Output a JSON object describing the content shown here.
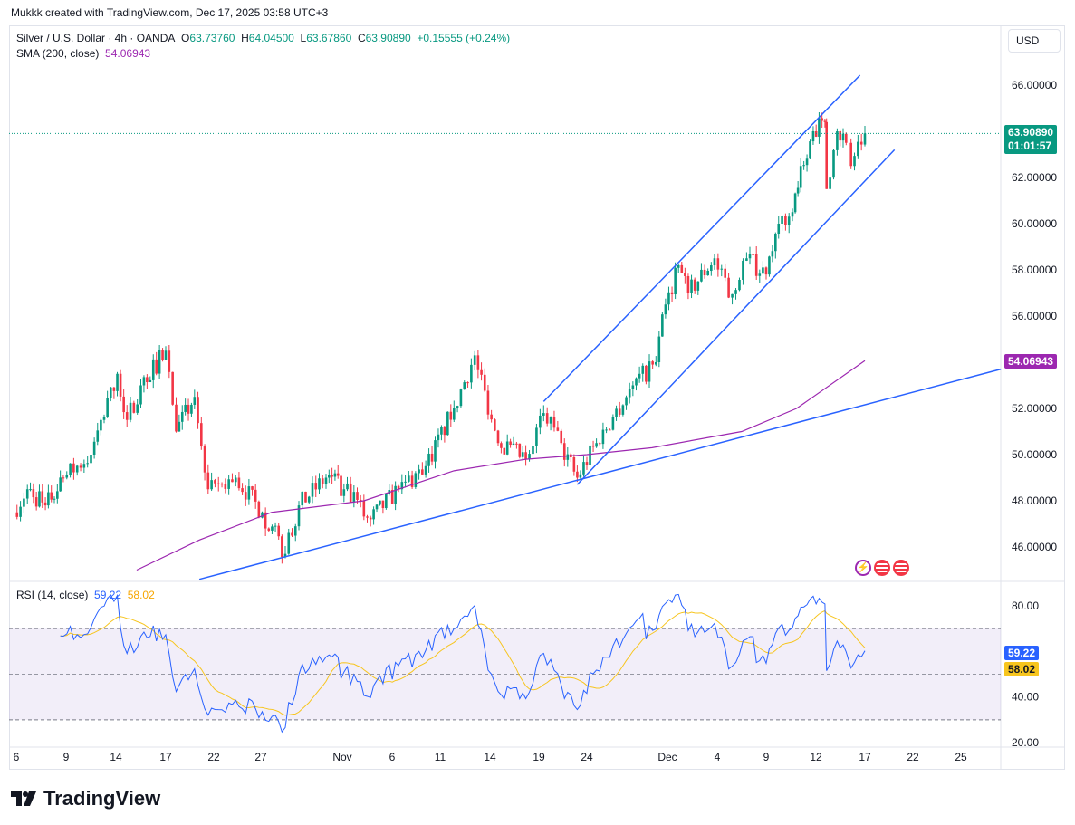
{
  "credit": "Mukkk created with TradingView.com, Dec 17, 2025 03:58 UTC+3",
  "legend": {
    "symbol": "Silver / U.S. Dollar · 4h · OANDA",
    "o_label": "O",
    "o": "63.73760",
    "h_label": "H",
    "h": "64.04500",
    "l_label": "L",
    "l": "63.67860",
    "c_label": "C",
    "c": "63.90890",
    "change": "+0.15555 (+0.24%)",
    "sma_label": "SMA (200, close)",
    "sma_value": "54.06943"
  },
  "currency": "USD",
  "price_label": {
    "price": "63.90890",
    "countdown": "01:01:57"
  },
  "sma_label": "54.06943",
  "rsi": {
    "label": "RSI (14, close)",
    "value": "59.22",
    "ma": "58.02"
  },
  "brand": "TradingView",
  "colors": {
    "up": "#089981",
    "down": "#f23645",
    "sma": "#9c27b0",
    "trendline": "#2962ff",
    "rsi": "#2962ff",
    "rsi_ma": "#f7c51e",
    "band": "#7e57c2"
  },
  "chart_data": [
    {
      "type": "candlestick",
      "title": "Silver / U.S. Dollar · 4h · OANDA",
      "ylim": [
        45,
        66.5
      ],
      "price_ticks": [
        "66.00000",
        "62.00000",
        "60.00000",
        "58.00000",
        "56.00000",
        "52.00000",
        "50.00000",
        "48.00000",
        "46.00000"
      ],
      "price_tick_values": [
        66,
        62,
        60,
        58,
        56,
        52,
        50,
        48,
        46
      ],
      "x_ticks": [
        "6",
        "9",
        "14",
        "17",
        "22",
        "27",
        "Nov",
        "6",
        "11",
        "14",
        "19",
        "24",
        "Dec",
        "4",
        "9",
        "12",
        "17",
        "22",
        "25"
      ],
      "x_tick_dates": [
        "Oct 6",
        "Oct 9",
        "Oct 14",
        "Oct 17",
        "Oct 22",
        "Oct 27",
        "Nov 1",
        "Nov 6",
        "Nov 11",
        "Nov 14",
        "Nov 19",
        "Nov 24",
        "Dec 1",
        "Dec 4",
        "Dec 9",
        "Dec 12",
        "Dec 17",
        "Dec 22",
        "Dec 25"
      ],
      "close_path": [
        [
          "Oct 5 20:00",
          47.5
        ],
        [
          "Oct 6 16:00",
          48.5
        ],
        [
          "Oct 7 18:00",
          47.8
        ],
        [
          "Oct 8 20:00",
          49
        ],
        [
          "Oct 11 12:00",
          50
        ],
        [
          "Oct 14 02:00",
          53.5
        ],
        [
          "Oct 14 16:00",
          51.5
        ],
        [
          "Oct 15 12:00",
          53
        ],
        [
          "Oct 17 00:00",
          54.5
        ],
        [
          "Oct 18 02:00",
          51
        ],
        [
          "Oct 20 00:00",
          52.5
        ],
        [
          "Oct 21 10:00",
          48.5
        ],
        [
          "Oct 24 08:00",
          49
        ],
        [
          "Oct 27 02:00",
          47.5
        ],
        [
          "Oct 28 12:00",
          45.7
        ],
        [
          "Oct 29 08:00",
          47.8
        ],
        [
          "Oct 31 00:00",
          49
        ],
        [
          "Nov 1 04:00",
          48.5
        ],
        [
          "Nov 3 20:00",
          47.2
        ],
        [
          "Nov 6 16:00",
          48.5
        ],
        [
          "Nov 9 12:00",
          49.5
        ],
        [
          "Nov 11 20:00",
          52
        ],
        [
          "Nov 13 02:00",
          54.3
        ],
        [
          "Nov 14 20:00",
          50.5
        ],
        [
          "Nov 17 16:00",
          49.8
        ],
        [
          "Nov 19 12:00",
          51.8
        ],
        [
          "Nov 21 08:00",
          50.5
        ],
        [
          "Nov 23 00:00",
          49
        ],
        [
          "Nov 24 20:00",
          50.5
        ],
        [
          "Nov 28 00:00",
          53
        ],
        [
          "Nov 30 00:00",
          54
        ],
        [
          "Nov 30 20:00",
          56.5
        ],
        [
          "Dec 1 16:00",
          58.2
        ],
        [
          "Dec 2 06:00",
          57
        ],
        [
          "Dec 3 20:00",
          58.5
        ],
        [
          "Dec 5 04:00",
          56.8
        ],
        [
          "Dec 7 00:00",
          58.5
        ],
        [
          "Dec 9 00:00",
          57.8
        ],
        [
          "Dec 9 18:00",
          60
        ],
        [
          "Dec 10 14:00",
          60.5
        ],
        [
          "Dec 11 02:00",
          62.5
        ],
        [
          "Dec 11 20:00",
          64
        ],
        [
          "Dec 12 22:00",
          64.4
        ],
        [
          "Dec 13 02:00",
          61.5
        ],
        [
          "Dec 14 04:00",
          64
        ],
        [
          "Dec 15 02:00",
          63.5
        ],
        [
          "Dec 15 14:00",
          62.5
        ],
        [
          "Dec 17 00:00",
          63.9089
        ]
      ],
      "sma_path": [
        [
          "Oct 15 06:00",
          45
        ],
        [
          "Oct 20 12:00",
          46.3
        ],
        [
          "Oct 27 16:00",
          47.5
        ],
        [
          "Nov 3 04:00",
          48
        ],
        [
          "Nov 11 20:00",
          49.3
        ],
        [
          "Nov 17 16:00",
          49.8
        ],
        [
          "Nov 24 00:00",
          50
        ],
        [
          "Nov 29 16:00",
          50.3
        ],
        [
          "Dec 6 12:00",
          51
        ],
        [
          "Dec 10 20:00",
          52
        ],
        [
          "Dec 17 00:00",
          54.06943
        ]
      ],
      "trendlines": [
        [
          [
            "Nov 19 12:00",
            52.3
          ],
          [
            "Dec 16 12:00",
            66.43
          ]
        ],
        [
          [
            "Nov 23 00:00",
            48.7
          ],
          [
            "Dec 20 02:00",
            63.2
          ]
        ],
        [
          [
            "Oct 20 12:00",
            44.6
          ],
          [
            "Dec 27 12:00",
            53.7
          ]
        ]
      ]
    },
    {
      "type": "line",
      "title": "RSI (14, close)",
      "ylim": [
        20,
        80
      ],
      "y_ticks": [
        "80.00",
        "40.00",
        "20.00"
      ],
      "y_tick_values": [
        80,
        40,
        20
      ],
      "bands": [
        30,
        50,
        70
      ]
    }
  ]
}
